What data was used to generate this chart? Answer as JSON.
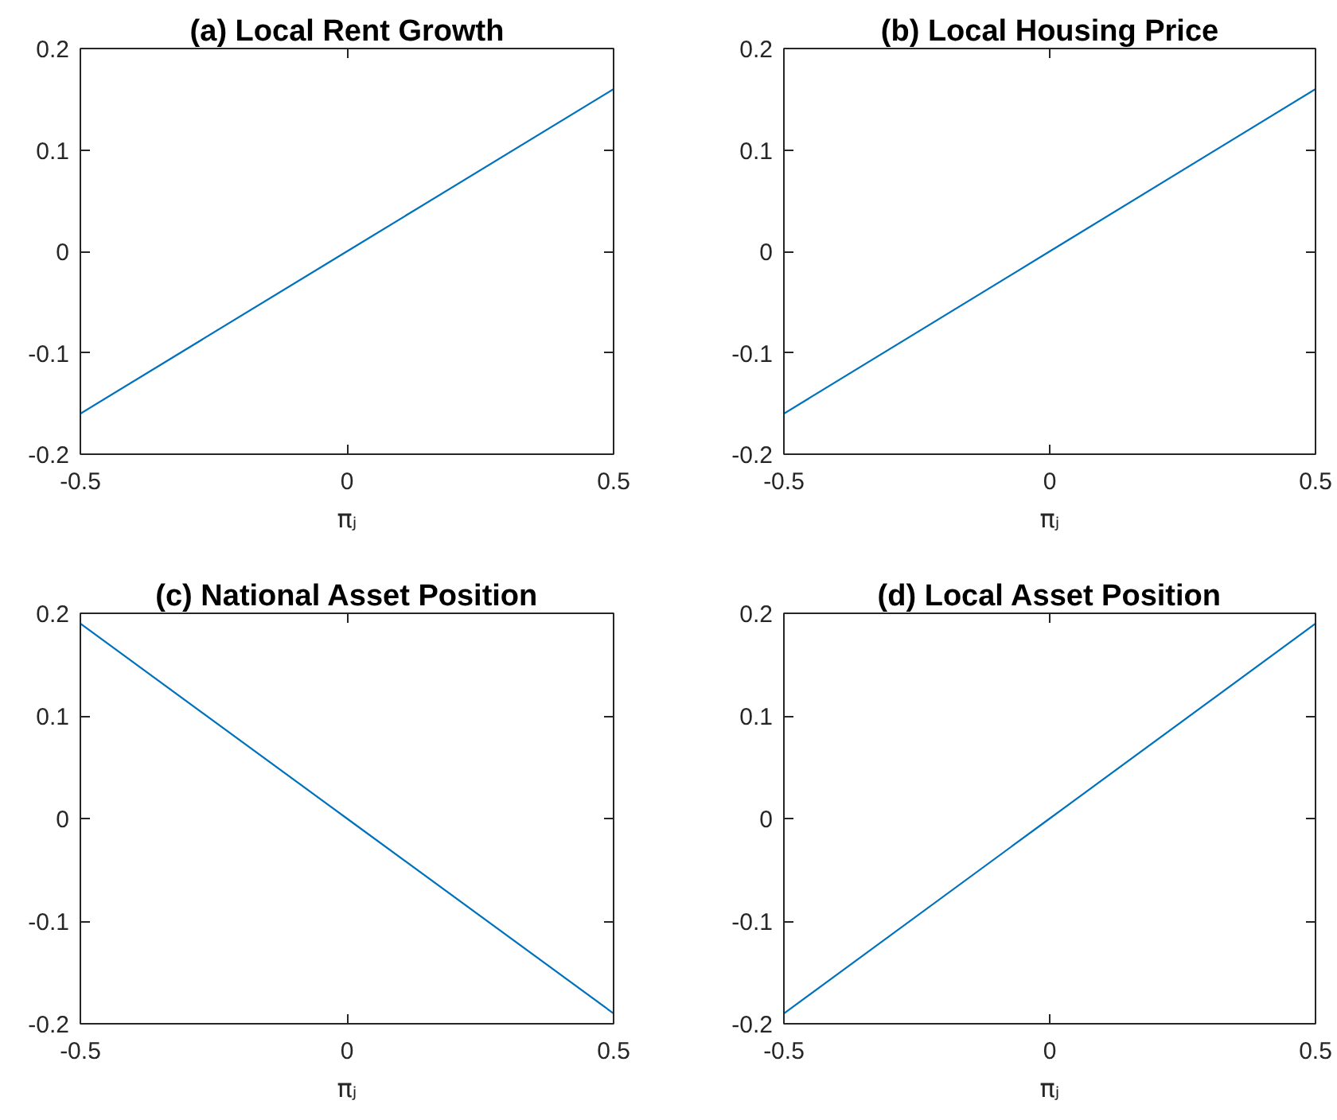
{
  "chart_data": [
    {
      "type": "line",
      "title": "(a) Local Rent Growth",
      "xlabel": "πⱼ",
      "x": [
        -0.5,
        0,
        0.5
      ],
      "values": [
        -0.16,
        0,
        0.16
      ],
      "color": "#0072bd",
      "xlim": [
        -0.5,
        0.5
      ],
      "xticks": [
        -0.5,
        0,
        0.5
      ],
      "ylim": [
        -0.2,
        0.2
      ],
      "yticks": [
        -0.2,
        -0.1,
        0,
        0.1,
        0.2
      ]
    },
    {
      "type": "line",
      "title": "(b) Local Housing Price",
      "xlabel": "πⱼ",
      "x": [
        -0.5,
        0,
        0.5
      ],
      "values": [
        -0.16,
        0,
        0.16
      ],
      "color": "#0072bd",
      "xlim": [
        -0.5,
        0.5
      ],
      "xticks": [
        -0.5,
        0,
        0.5
      ],
      "ylim": [
        -0.2,
        0.2
      ],
      "yticks": [
        -0.2,
        -0.1,
        0,
        0.1,
        0.2
      ]
    },
    {
      "type": "line",
      "title": "(c) National Asset Position",
      "xlabel": "πⱼ",
      "x": [
        -0.5,
        0,
        0.5
      ],
      "values": [
        0.19,
        0,
        -0.19
      ],
      "color": "#0072bd",
      "xlim": [
        -0.5,
        0.5
      ],
      "xticks": [
        -0.5,
        0,
        0.5
      ],
      "ylim": [
        -0.2,
        0.2
      ],
      "yticks": [
        -0.2,
        -0.1,
        0,
        0.1,
        0.2
      ]
    },
    {
      "type": "line",
      "title": "(d) Local Asset Position",
      "xlabel": "πⱼ",
      "x": [
        -0.5,
        0,
        0.5
      ],
      "values": [
        -0.19,
        0,
        0.19
      ],
      "color": "#0072bd",
      "xlim": [
        -0.5,
        0.5
      ],
      "xticks": [
        -0.5,
        0,
        0.5
      ],
      "ylim": [
        -0.2,
        0.2
      ],
      "yticks": [
        -0.2,
        -0.1,
        0,
        0.1,
        0.2
      ]
    }
  ]
}
